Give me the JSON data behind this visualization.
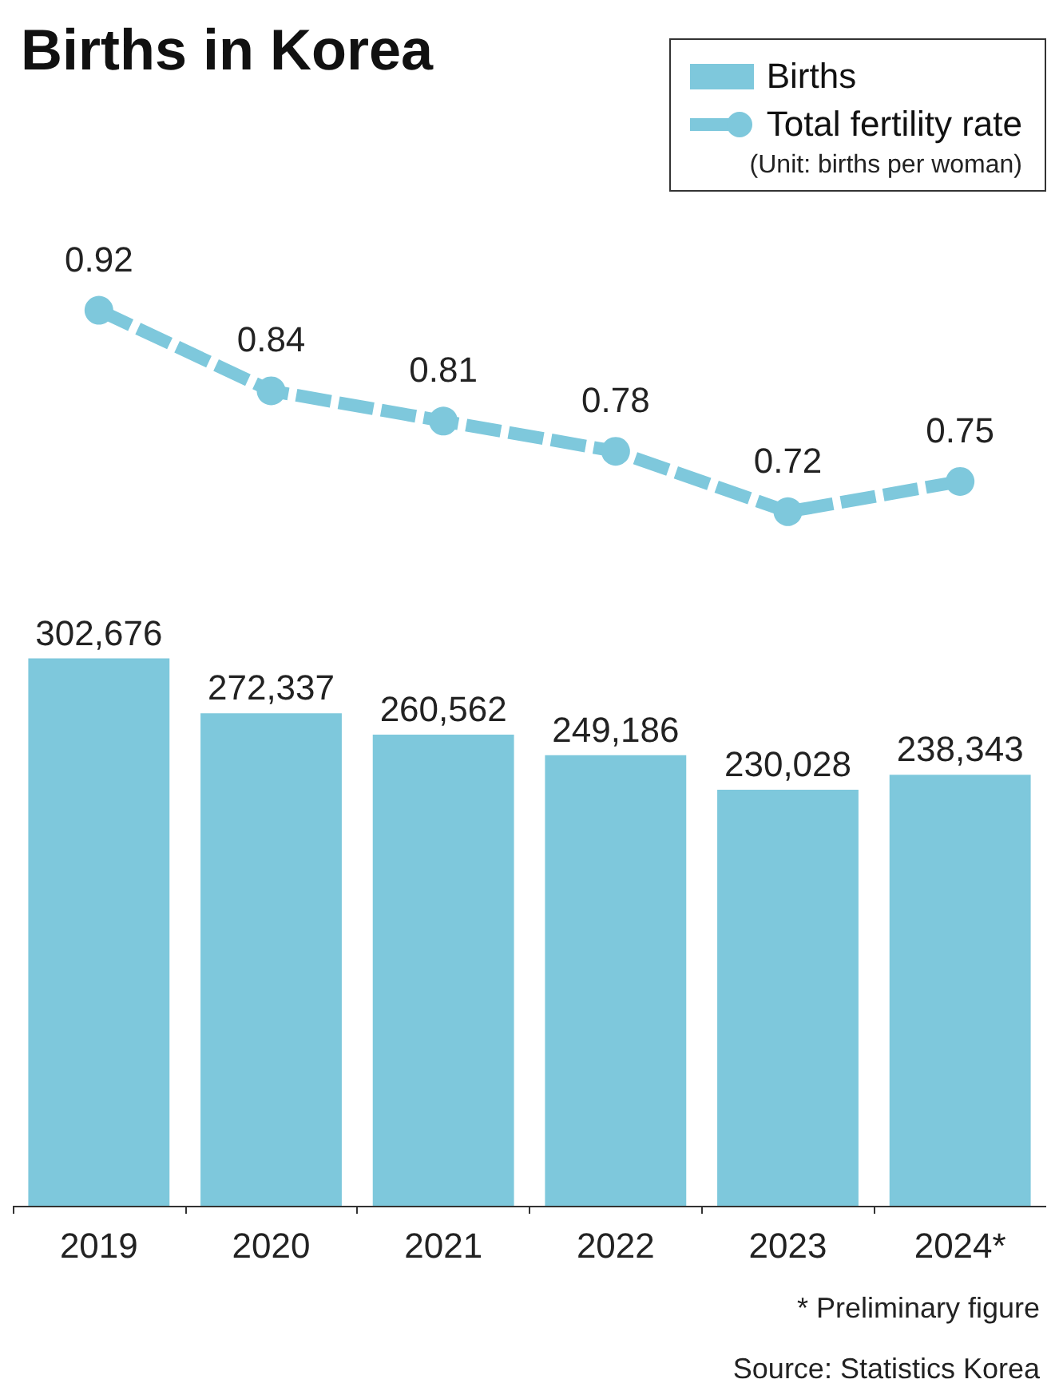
{
  "chart_data": [
    {
      "type": "line",
      "title": "Births in Korea",
      "categories": [
        null,
        null,
        null,
        null,
        null,
        null
      ],
      "series": [
        {
          "name": "Total fertility rate",
          "color": "#7ec8dc",
          "values": [
            0.92,
            0.84,
            0.81,
            0.78,
            0.72,
            0.75
          ]
        }
      ],
      "marker": "circle",
      "line_style": "dashed",
      "data_labels": true,
      "legend": "top right",
      "annotations": [
        "(Unit: births per woman)"
      ]
    },
    {
      "type": "bar",
      "categories": [
        "2019",
        "2020",
        "2021",
        "2022",
        "2023",
        "2024*"
      ],
      "series": [
        {
          "name": "Births",
          "color": "#7ec8dc",
          "values": [
            302676,
            272337,
            260562,
            249186,
            230028,
            238343
          ],
          "value_labels": [
            "302,676",
            "272,337",
            "260,562",
            "249,186",
            "230,028",
            "238,343"
          ]
        }
      ],
      "annotations": [
        "* Preliminary figure",
        "Source: Statistics Korea"
      ]
    }
  ]
}
